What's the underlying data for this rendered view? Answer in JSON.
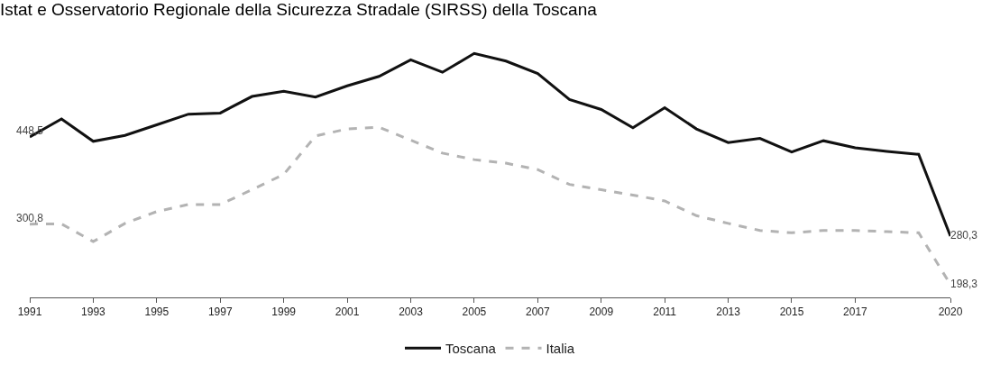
{
  "chart_data": {
    "type": "line",
    "title": "Istat e Osservatorio Regionale della Sicurezza Stradale (SIRSS) della Toscana",
    "x": [
      1991,
      1992,
      1993,
      1994,
      1995,
      1996,
      1997,
      1998,
      1999,
      2000,
      2001,
      2002,
      2003,
      2004,
      2005,
      2006,
      2007,
      2008,
      2009,
      2010,
      2011,
      2012,
      2013,
      2014,
      2015,
      2016,
      2017,
      2018,
      2019,
      2020
    ],
    "series": [
      {
        "name": "Toscana",
        "color": "#111111",
        "line_style": "solid",
        "values": [
          448.5,
          479,
          441,
          451,
          469,
          487,
          489,
          517,
          526,
          516,
          535,
          551,
          579,
          558,
          590,
          577,
          556,
          512,
          495,
          464,
          498,
          462,
          439,
          446,
          423,
          442,
          430,
          424,
          419,
          280.3
        ],
        "value_labels": [
          "448,5",
          null,
          null,
          null,
          null,
          null,
          null,
          null,
          null,
          null,
          null,
          null,
          null,
          null,
          null,
          null,
          null,
          null,
          null,
          null,
          null,
          null,
          null,
          null,
          null,
          null,
          null,
          null,
          null,
          "280,3"
        ]
      },
      {
        "name": "Italia",
        "color": "#b3b3b3",
        "line_style": "dashed",
        "values": [
          300.8,
          301,
          271,
          302,
          322,
          334,
          334,
          359,
          385,
          450,
          462,
          465,
          443,
          421,
          410,
          404,
          393,
          368,
          359,
          350,
          340,
          315,
          302,
          290,
          286,
          290,
          290,
          288,
          286,
          198.3
        ],
        "value_labels": [
          "300,8",
          null,
          null,
          null,
          null,
          null,
          null,
          null,
          null,
          null,
          null,
          null,
          null,
          null,
          null,
          null,
          null,
          null,
          null,
          null,
          null,
          null,
          null,
          null,
          null,
          null,
          null,
          null,
          null,
          "198,3"
        ]
      }
    ],
    "xlim": [
      1991,
      2020
    ],
    "xticks": [
      1991,
      1993,
      1995,
      1997,
      1999,
      2001,
      2003,
      2005,
      2007,
      2009,
      2011,
      2013,
      2015,
      2017,
      2020
    ],
    "tick_labels": "x",
    "legend": "bottom",
    "marker": "none"
  }
}
